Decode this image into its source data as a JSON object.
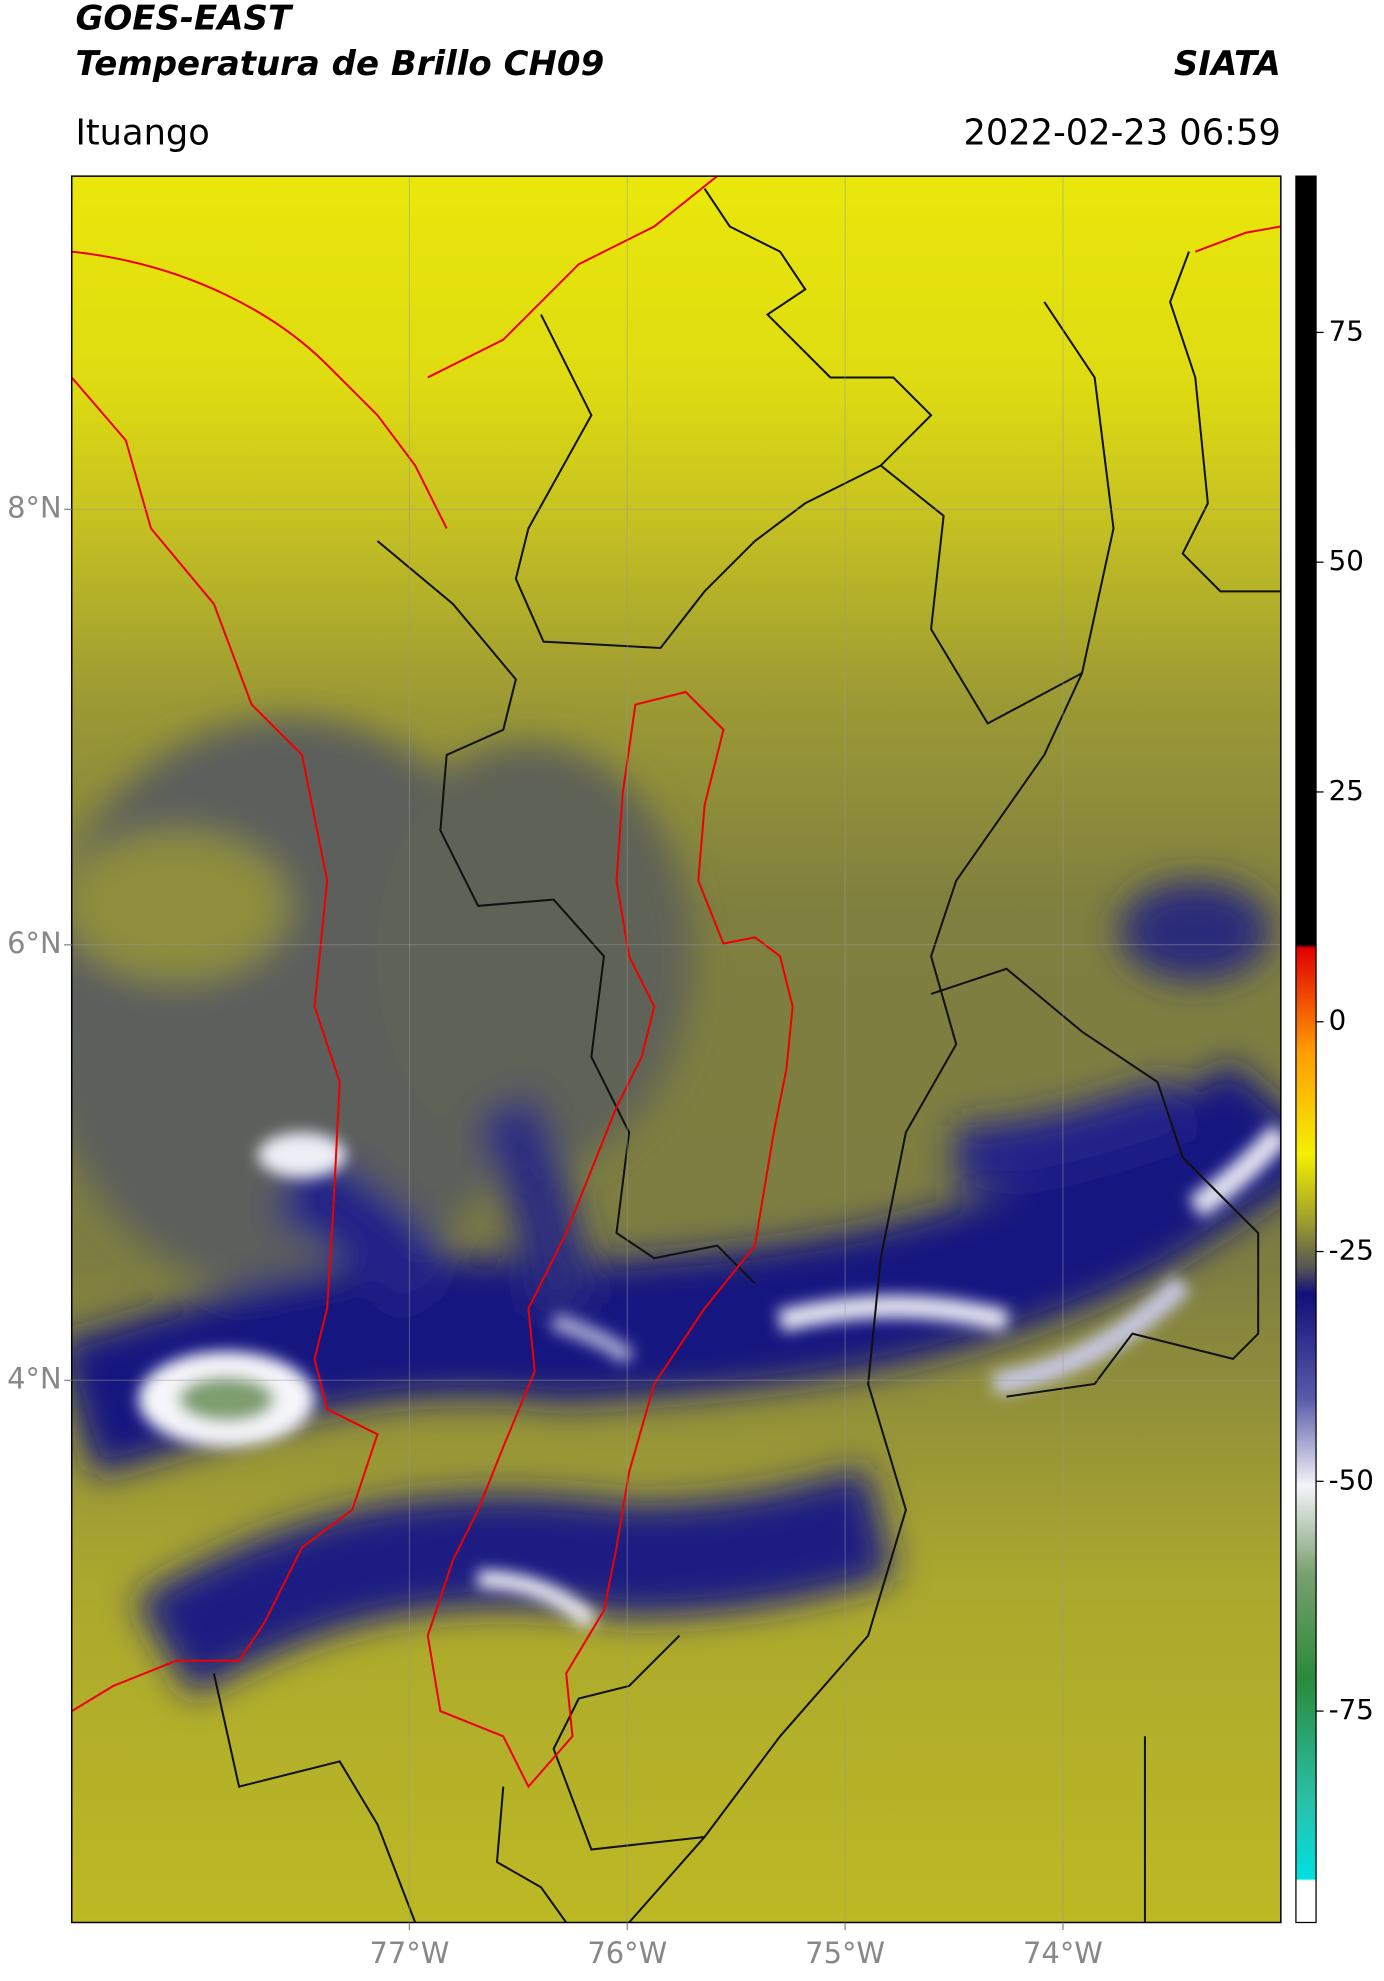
{
  "title_line1": "GOES-EAST",
  "title_line2": "Temperatura de Brillo CH09",
  "title_right": "SIATA",
  "subtitle_left": "Ituango",
  "subtitle_right": "2022-02-23 06:59",
  "map": {
    "xlim": [
      -78.55,
      -73.0
    ],
    "ylim": [
      1.51,
      9.53
    ],
    "xticks": [
      {
        "value": -77,
        "label": "77°W"
      },
      {
        "value": -76,
        "label": "76°W"
      },
      {
        "value": -75,
        "label": "75°W"
      },
      {
        "value": -74,
        "label": "74°W"
      }
    ],
    "yticks": [
      {
        "value": 8,
        "label": "8°N"
      },
      {
        "value": 6,
        "label": "6°N"
      },
      {
        "value": 4,
        "label": "4°N"
      }
    ],
    "grid": true
  },
  "colorbar": {
    "lim": [
      -98,
      92
    ],
    "ticks": [
      75,
      50,
      25,
      0,
      -25,
      -50,
      -75
    ]
  }
}
